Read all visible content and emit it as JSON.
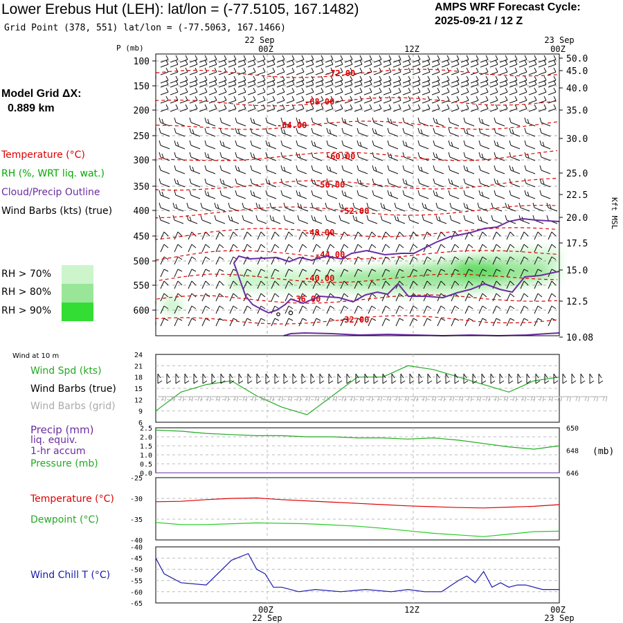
{
  "header": {
    "title": "Lower Erebus Hut (LEH):  lat/lon = (-77.5105, 167.1482)",
    "cycle_line1": "AMPS WRF Forecast Cycle:",
    "cycle_line2": "2025-09-21 / 12  Z",
    "grid_point": "Grid Point (378, 551) lat/lon = (-77.5063, 167.1466)"
  },
  "side": {
    "model_grid_label": "Model Grid ΔX:",
    "model_grid_value": "0.889 km",
    "legend_temperature": "Temperature (°C)",
    "legend_rh": "RH (%, WRT liq. wat.)",
    "legend_cloud": "Cloud/Precip Outline",
    "legend_wind": "Wind Barbs (kts) (true)",
    "rh_levels": [
      "RH > 70%",
      "RH > 80%",
      "RH > 90%"
    ],
    "rh_colors": [
      "#ccf5cc",
      "#99e699",
      "#33dd33"
    ]
  },
  "time_axis": {
    "top_dates": [
      "22 Sep",
      "23 Sep"
    ],
    "bottom_dates": [
      "22 Sep",
      "23 Sep"
    ],
    "ticks": [
      "00Z",
      "12Z",
      "00Z"
    ]
  },
  "colors": {
    "temperature": "#dd0000",
    "rh_line": "#00aa00",
    "cloud": "#6a2ca0",
    "dewpoint": "#22cc22",
    "windchill": "#1a1aaa",
    "gray_barbs": "#aaaaaa"
  },
  "chart_data": [
    {
      "type": "line",
      "name": "upper-air-cross-section",
      "ylabel": "P (mb)",
      "right_label": "Kft MSL",
      "pressure_ticks": [
        "100",
        "150",
        "200",
        "250",
        "300",
        "350",
        "400",
        "450",
        "500",
        "550",
        "600"
      ],
      "kft_ticks": [
        "50.0",
        "45.0",
        "40.0",
        "35.0",
        "30.0",
        "25.0",
        "22.5",
        "20.0",
        "17.5",
        "15.0",
        "12.5",
        "10.08"
      ],
      "isotherm_labels": [
        "-72.00",
        "-68.00",
        "-64.00",
        "-60.00",
        "-56.00",
        "-52.00",
        "-48.00",
        "-44.00",
        "-40.00",
        "-36.00",
        "-32.00"
      ],
      "isotherm_levels": [
        -72,
        -68,
        -64,
        -60,
        -56,
        -52,
        -48,
        -44,
        -40,
        -36,
        -32
      ]
    },
    {
      "type": "line",
      "name": "surface-wind",
      "header": "Wind at 10 m",
      "label_speed": "Wind Spd (kts)",
      "label_barbs_true": "Wind Barbs (true)",
      "label_barbs_grid": "Wind Barbs (grid)",
      "yticks": [
        "24",
        "21",
        "18",
        "15",
        "12",
        "9",
        "6"
      ],
      "ylim": [
        6,
        24
      ],
      "x_hours": [
        0,
        3,
        6,
        9,
        12,
        15,
        18,
        21,
        24,
        27,
        30,
        33,
        36,
        39,
        42,
        45,
        48
      ],
      "wind_speed": [
        9,
        14,
        16,
        17,
        13,
        10,
        8,
        13,
        18,
        18,
        21,
        20,
        18,
        16,
        14,
        17,
        18
      ]
    },
    {
      "type": "line",
      "name": "precip-pressure",
      "label_precip": "Precip (mm)",
      "label_liq": "liq. equiv.",
      "label_accum": "1-hr accum",
      "label_pressure": "Pressure (mb)",
      "unit_right": "(mb)",
      "yticks_left": [
        "2.5",
        "2.0",
        "1.5",
        "1.0",
        "0.5",
        "0.0"
      ],
      "yticks_right": [
        "650",
        "648",
        "646"
      ],
      "ylim_left": [
        0,
        2.5
      ],
      "ylim_right": [
        646,
        650
      ],
      "x_hours": [
        0,
        3,
        6,
        9,
        12,
        15,
        18,
        21,
        24,
        27,
        30,
        33,
        36,
        39,
        42,
        45,
        48
      ],
      "precip": [
        0,
        0,
        0,
        0,
        0,
        0,
        0,
        0,
        0,
        0,
        0,
        0,
        0,
        0,
        0,
        0,
        0
      ],
      "pressure": [
        649.8,
        649.7,
        649.5,
        649.4,
        649.3,
        649.3,
        649.2,
        649.2,
        649.1,
        649.1,
        649.0,
        649.1,
        648.9,
        648.6,
        648.3,
        648.1,
        648.4
      ]
    },
    {
      "type": "line",
      "name": "temperature-dewpoint",
      "label_temp": "Temperature (°C)",
      "label_dew": "Dewpoint (°C)",
      "yticks": [
        "-25",
        "-30",
        "-35",
        "-40"
      ],
      "ylim": [
        -40,
        -25
      ],
      "x_hours": [
        0,
        3,
        6,
        9,
        12,
        15,
        18,
        21,
        24,
        27,
        30,
        33,
        36,
        39,
        42,
        45,
        48
      ],
      "temperature": [
        -30.8,
        -30.7,
        -30.3,
        -30.0,
        -29.9,
        -30.3,
        -30.6,
        -30.9,
        -31.2,
        -31.5,
        -31.8,
        -32.0,
        -32.2,
        -32.3,
        -32.1,
        -31.9,
        -31.5
      ],
      "dewpoint": [
        -35.8,
        -36.3,
        -36.3,
        -36.1,
        -35.9,
        -36.0,
        -36.1,
        -36.4,
        -36.7,
        -37.2,
        -37.8,
        -38.4,
        -38.8,
        -39.2,
        -38.6,
        -38.0,
        -37.9
      ]
    },
    {
      "type": "line",
      "name": "wind-chill",
      "label": "Wind Chill T (°C)",
      "yticks": [
        "-40",
        "-45",
        "-50",
        "-55",
        "-60",
        "-65"
      ],
      "ylim": [
        -65,
        -40
      ],
      "x_hours": [
        0,
        1,
        3,
        6,
        9,
        11,
        12,
        13,
        14,
        15,
        17,
        19,
        22,
        25,
        28,
        30,
        32,
        34,
        36,
        37,
        38,
        39,
        40,
        41,
        42,
        43,
        44,
        46,
        48
      ],
      "windchill": [
        -45,
        -52,
        -56,
        -57,
        -46,
        -43,
        -50,
        -52,
        -58,
        -58,
        -60,
        -59,
        -60,
        -59,
        -60,
        -59,
        -60,
        -60,
        -55,
        -53,
        -56,
        -51,
        -58,
        -56,
        -58,
        -57,
        -57,
        -59,
        -59
      ]
    }
  ]
}
